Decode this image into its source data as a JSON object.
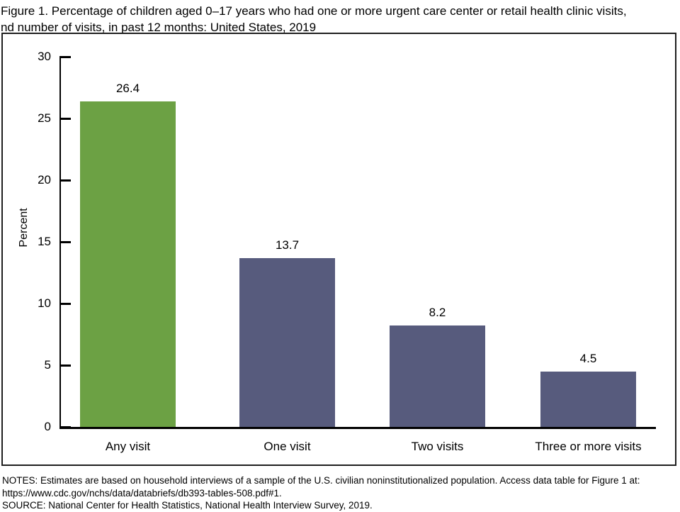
{
  "title": {
    "line1": "Figure 1. Percentage of children aged 0–17 years who had one or more urgent care center or retail health clinic visits,",
    "line2": "nd number of visits, in past 12 months: United States, 2019"
  },
  "chart_data": {
    "type": "bar",
    "title": "Percentage of children aged 0–17 years who had one or more urgent care center or retail health clinic visits, and number of visits, in past 12 months: United States, 2019",
    "categories": [
      "Any visit",
      "One visit",
      "Two visits",
      "Three or more visits"
    ],
    "values": [
      26.4,
      13.7,
      8.2,
      4.5
    ],
    "value_labels": [
      "26.4",
      "13.7",
      "8.2",
      "4.5"
    ],
    "bar_colors": [
      "#6CA144",
      "#575B7D",
      "#575B7D",
      "#575B7D"
    ],
    "xlabel": "",
    "ylabel": "Percent",
    "ylim": [
      0,
      30
    ],
    "yticks": [
      0,
      5,
      10,
      15,
      20,
      25,
      30
    ],
    "grid": false,
    "legend": false
  },
  "notes": {
    "line1": "NOTES: Estimates are based on household interviews of a sample of the U.S. civilian noninstitutionalized population. Access data table for Figure 1 at:",
    "line2": "https://www.cdc.gov/nchs/data/databriefs/db393-tables-508.pdf#1.",
    "line3": "SOURCE: National Center for Health Statistics, National Health Interview Survey, 2019."
  },
  "colors": {
    "bar_green": "#6CA144",
    "bar_slate": "#575B7D",
    "axis": "#000000",
    "frame_border": "#1f1f1f"
  }
}
